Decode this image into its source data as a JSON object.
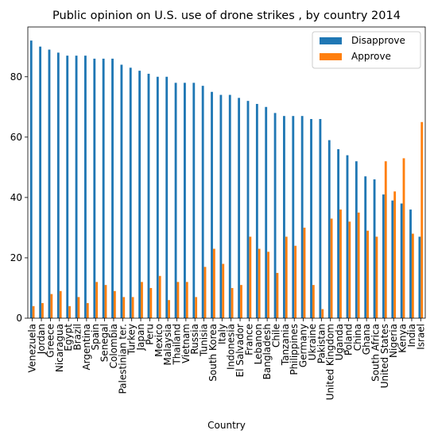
{
  "chart_data": {
    "type": "bar",
    "title": "Public opinion on U.S. use of drone strikes , by country 2014",
    "xlabel": "Country",
    "ylabel": "",
    "ylim": [
      0,
      96.5
    ],
    "yticks": [
      0,
      20,
      40,
      60,
      80
    ],
    "legend_position": "top-right",
    "categories": [
      "Venezuela",
      "Jordan",
      "Greece",
      "Nicaragua",
      "Egypt",
      "Brazil",
      "Argentina",
      "Spain",
      "Senegal",
      "Colombia",
      "Palestinian ter.",
      "Turkey",
      "Japan",
      "Peru",
      "Mexico",
      "Malaysia",
      "Thailand",
      "Vietnam",
      "Russia",
      "Tunisia",
      "South Korea",
      "Italy",
      "Indonesia",
      "El Salvador",
      "France",
      "Lebanon",
      "Bangladesh",
      "Chile",
      "Tanzania",
      "Philippines",
      "Germany",
      "Ukraine",
      "Pakistan",
      "United Kingdom",
      "Uganda",
      "Poland",
      "China",
      "Ghana",
      "South Africa",
      "United States",
      "Nigeria",
      "Kenya",
      "India",
      "Israel"
    ],
    "series": [
      {
        "name": "Disapprove",
        "color": "#1f77b4",
        "values": [
          92,
          90,
          89,
          88,
          87,
          87,
          87,
          86,
          86,
          86,
          84,
          83,
          82,
          81,
          80,
          80,
          78,
          78,
          78,
          77,
          75,
          74,
          74,
          73,
          72,
          71,
          70,
          68,
          67,
          67,
          67,
          66,
          66,
          59,
          56,
          54,
          52,
          47,
          46,
          41,
          39,
          38,
          36,
          27
        ]
      },
      {
        "name": "Approve",
        "color": "#ff7f0e",
        "values": [
          4,
          5,
          8,
          9,
          4,
          7,
          5,
          12,
          11,
          9,
          7,
          7,
          12,
          10,
          14,
          6,
          12,
          12,
          7,
          17,
          23,
          18,
          10,
          11,
          27,
          23,
          22,
          15,
          27,
          24,
          30,
          11,
          3,
          33,
          36,
          32,
          35,
          29,
          27,
          52,
          42,
          53,
          28,
          65
        ]
      }
    ]
  }
}
